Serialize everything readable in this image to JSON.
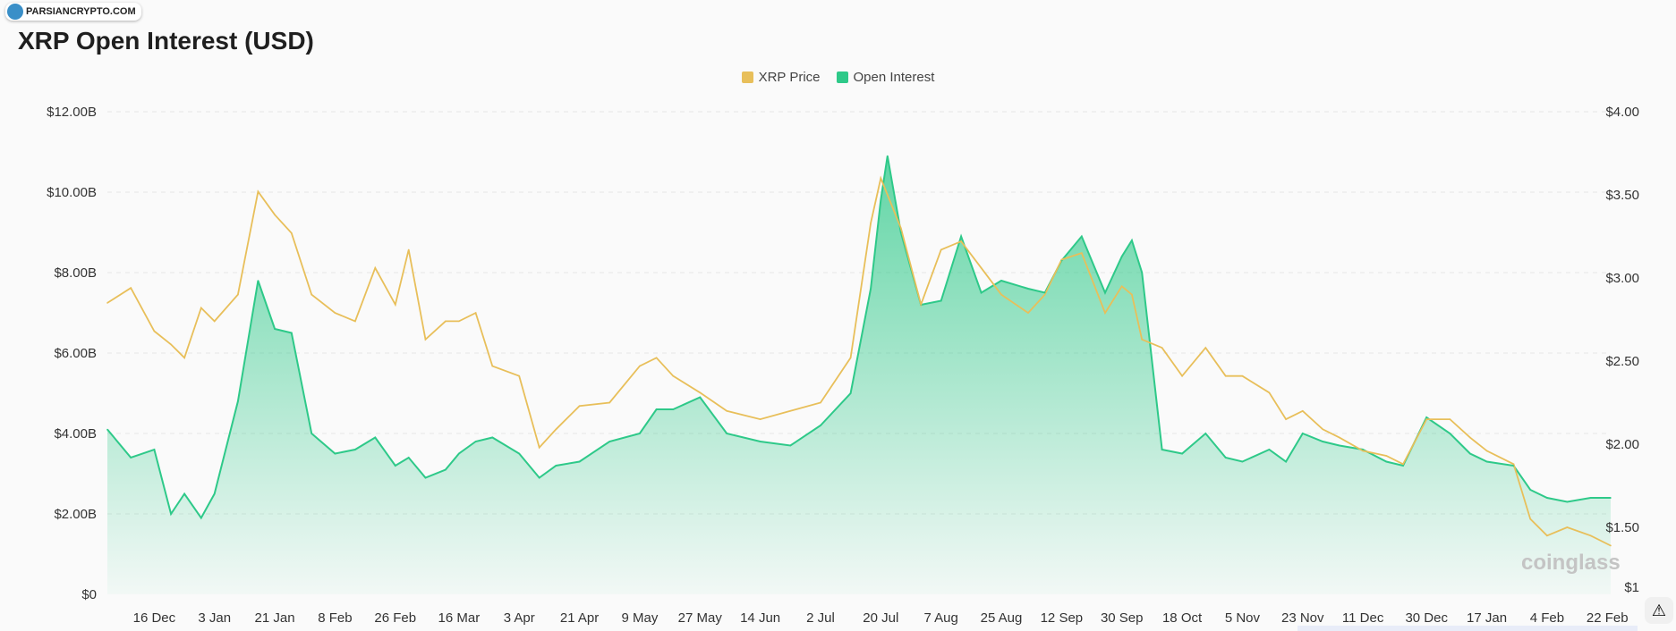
{
  "watermark_badge": "PARSIANCRYPTO.COM",
  "brand_watermark": "coinglass",
  "chart_data": {
    "type": "line",
    "title": "XRP Open Interest (USD)",
    "legend_placement": "top",
    "colors": {
      "price": "#e8bf5a",
      "oi": "#2ec989"
    },
    "series": [
      {
        "name": "XRP Price",
        "axis": "right"
      },
      {
        "name": "Open Interest",
        "axis": "left",
        "style": "area"
      }
    ],
    "xlim": [
      "2023-12-02",
      "2025-02-23"
    ],
    "x_ticks": [
      [
        "2023-12-16",
        "16 Dec"
      ],
      [
        "2024-01-03",
        "3 Jan"
      ],
      [
        "2024-01-21",
        "21 Jan"
      ],
      [
        "2024-02-08",
        "8 Feb"
      ],
      [
        "2024-02-26",
        "26 Feb"
      ],
      [
        "2024-03-16",
        "16 Mar"
      ],
      [
        "2024-04-03",
        "3 Apr"
      ],
      [
        "2024-04-21",
        "21 Apr"
      ],
      [
        "2024-05-09",
        "9 May"
      ],
      [
        "2024-05-27",
        "27 May"
      ],
      [
        "2024-06-14",
        "14 Jun"
      ],
      [
        "2024-07-02",
        "2 Jul"
      ],
      [
        "2024-07-20",
        "20 Jul"
      ],
      [
        "2024-08-07",
        "7 Aug"
      ],
      [
        "2024-08-25",
        "25 Aug"
      ],
      [
        "2024-09-12",
        "12 Sep"
      ],
      [
        "2024-09-30",
        "30 Sep"
      ],
      [
        "2024-10-18",
        "18 Oct"
      ],
      [
        "2024-11-05",
        "5 Nov"
      ],
      [
        "2024-11-23",
        "23 Nov"
      ],
      [
        "2024-12-11",
        "11 Dec"
      ],
      [
        "2024-12-30",
        "30 Dec"
      ],
      [
        "2025-01-17",
        "17 Jan"
      ],
      [
        "2025-02-04",
        "4 Feb"
      ],
      [
        "2025-02-22",
        "22 Feb"
      ]
    ],
    "y_left": {
      "ylim": [
        0,
        12
      ],
      "ticks": [
        [
          0,
          "$0"
        ],
        [
          2,
          "$2.00B"
        ],
        [
          4,
          "$4.00B"
        ],
        [
          6,
          "$6.00B"
        ],
        [
          8,
          "$8.00B"
        ],
        [
          10,
          "$10.00B"
        ],
        [
          12,
          "$12.00B"
        ]
      ]
    },
    "y_right": {
      "ylim": [
        1,
        4
      ],
      "ticks": [
        [
          1,
          "$1"
        ],
        [
          1.5,
          "$1.50"
        ],
        [
          2,
          "$2.00"
        ],
        [
          2.5,
          "$2.50"
        ],
        [
          3,
          "$3.00"
        ],
        [
          3.5,
          "$3.50"
        ],
        [
          4,
          "$4.00"
        ]
      ]
    },
    "grid": true,
    "points": [
      [
        "2023-12-02",
        4.1,
        2.85
      ],
      [
        "2023-12-09",
        3.4,
        2.94
      ],
      [
        "2023-12-16",
        3.6,
        2.68
      ],
      [
        "2023-12-21",
        2.0,
        2.6
      ],
      [
        "2023-12-25",
        2.5,
        2.52
      ],
      [
        "2023-12-30",
        1.9,
        2.82
      ],
      [
        "2024-01-03",
        2.5,
        2.74
      ],
      [
        "2024-01-10",
        4.8,
        2.9
      ],
      [
        "2024-01-16",
        7.8,
        3.52
      ],
      [
        "2024-01-21",
        6.6,
        3.38
      ],
      [
        "2024-01-26",
        6.5,
        3.27
      ],
      [
        "2024-02-01",
        4.0,
        2.9
      ],
      [
        "2024-02-08",
        3.5,
        2.79
      ],
      [
        "2024-02-14",
        3.6,
        2.74
      ],
      [
        "2024-02-20",
        3.9,
        3.06
      ],
      [
        "2024-02-26",
        3.2,
        2.84
      ],
      [
        "2024-03-01",
        3.4,
        3.17
      ],
      [
        "2024-03-06",
        2.9,
        2.63
      ],
      [
        "2024-03-12",
        3.1,
        2.74
      ],
      [
        "2024-03-16",
        3.5,
        2.74
      ],
      [
        "2024-03-21",
        3.8,
        2.79
      ],
      [
        "2024-03-26",
        3.9,
        2.47
      ],
      [
        "2024-04-03",
        3.5,
        2.41
      ],
      [
        "2024-04-09",
        2.9,
        1.98
      ],
      [
        "2024-04-14",
        3.2,
        2.09
      ],
      [
        "2024-04-21",
        3.3,
        2.23
      ],
      [
        "2024-04-30",
        3.8,
        2.25
      ],
      [
        "2024-05-09",
        4.0,
        2.47
      ],
      [
        "2024-05-14",
        4.6,
        2.52
      ],
      [
        "2024-05-19",
        4.6,
        2.41
      ],
      [
        "2024-05-27",
        4.9,
        2.31
      ],
      [
        "2024-06-04",
        4.0,
        2.2
      ],
      [
        "2024-06-14",
        3.8,
        2.15
      ],
      [
        "2024-06-23",
        3.7,
        2.2
      ],
      [
        "2024-07-02",
        4.2,
        2.25
      ],
      [
        "2024-07-11",
        5.0,
        2.52
      ],
      [
        "2024-07-17",
        7.6,
        3.33
      ],
      [
        "2024-07-20",
        9.8,
        3.6
      ],
      [
        "2024-07-22",
        10.9,
        3.5
      ],
      [
        "2024-07-26",
        9.0,
        3.3
      ],
      [
        "2024-08-01",
        7.2,
        2.84
      ],
      [
        "2024-08-07",
        7.3,
        3.17
      ],
      [
        "2024-08-13",
        8.9,
        3.22
      ],
      [
        "2024-08-19",
        7.5,
        3.06
      ],
      [
        "2024-08-25",
        7.8,
        2.9
      ],
      [
        "2024-09-02",
        7.6,
        2.79
      ],
      [
        "2024-09-07",
        7.5,
        2.9
      ],
      [
        "2024-09-12",
        8.3,
        3.11
      ],
      [
        "2024-09-18",
        8.9,
        3.15
      ],
      [
        "2024-09-25",
        7.5,
        2.79
      ],
      [
        "2024-09-30",
        8.4,
        2.95
      ],
      [
        "2024-10-03",
        8.8,
        2.9
      ],
      [
        "2024-10-06",
        8.0,
        2.63
      ],
      [
        "2024-10-12",
        3.6,
        2.58
      ],
      [
        "2024-10-18",
        3.5,
        2.41
      ],
      [
        "2024-10-25",
        4.0,
        2.58
      ],
      [
        "2024-10-31",
        3.4,
        2.41
      ],
      [
        "2024-11-05",
        3.3,
        2.41
      ],
      [
        "2024-11-13",
        3.6,
        2.31
      ],
      [
        "2024-11-18",
        3.3,
        2.15
      ],
      [
        "2024-11-23",
        4.0,
        2.2
      ],
      [
        "2024-11-29",
        3.8,
        2.09
      ],
      [
        "2024-12-04",
        3.7,
        2.04
      ],
      [
        "2024-12-11",
        3.6,
        1.96
      ],
      [
        "2024-12-18",
        3.3,
        1.93
      ],
      [
        "2024-12-23",
        3.2,
        1.88
      ],
      [
        "2024-12-30",
        4.4,
        2.15
      ],
      [
        "2025-01-06",
        4.0,
        2.15
      ],
      [
        "2025-01-12",
        3.5,
        2.04
      ],
      [
        "2025-01-17",
        3.3,
        1.96
      ],
      [
        "2025-01-25",
        3.2,
        1.88
      ],
      [
        "2025-01-30",
        2.6,
        1.55
      ],
      [
        "2025-02-04",
        2.4,
        1.45
      ],
      [
        "2025-02-10",
        2.3,
        1.5
      ],
      [
        "2025-02-17",
        2.4,
        1.45
      ],
      [
        "2025-02-23",
        2.4,
        1.39
      ]
    ]
  }
}
